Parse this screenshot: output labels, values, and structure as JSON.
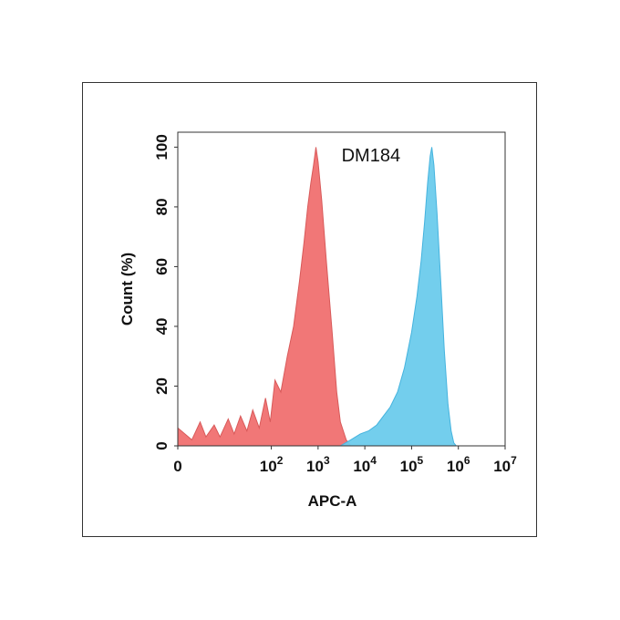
{
  "chart_data": {
    "type": "area",
    "title": "DM184",
    "xlabel": "APC-A",
    "ylabel": "Count  (%)",
    "x_scale": "log",
    "xlim": [
      1,
      10000000
    ],
    "ylim": [
      0,
      105
    ],
    "x_tick_labels": [
      {
        "value": 1,
        "base": "0",
        "exp": ""
      },
      {
        "value": 100,
        "base": "10",
        "exp": "2"
      },
      {
        "value": 1000,
        "base": "10",
        "exp": "3"
      },
      {
        "value": 10000,
        "base": "10",
        "exp": "4"
      },
      {
        "value": 100000,
        "base": "10",
        "exp": "5"
      },
      {
        "value": 1000000,
        "base": "10",
        "exp": "6"
      },
      {
        "value": 10000000,
        "base": "10",
        "exp": "7"
      }
    ],
    "y_ticks": [
      0,
      20,
      40,
      60,
      80,
      100
    ],
    "grid": false,
    "legend": "none",
    "series": [
      {
        "color": "#f07070",
        "edge": "#d85a5a",
        "points": [
          [
            1,
            6
          ],
          [
            2,
            2
          ],
          [
            3,
            8
          ],
          [
            4,
            3
          ],
          [
            6,
            7
          ],
          [
            8,
            3
          ],
          [
            12,
            9
          ],
          [
            16,
            4
          ],
          [
            22,
            10
          ],
          [
            30,
            5
          ],
          [
            40,
            12
          ],
          [
            55,
            6
          ],
          [
            75,
            16
          ],
          [
            95,
            8
          ],
          [
            120,
            22
          ],
          [
            160,
            18
          ],
          [
            220,
            30
          ],
          [
            300,
            40
          ],
          [
            400,
            55
          ],
          [
            500,
            68
          ],
          [
            600,
            80
          ],
          [
            700,
            88
          ],
          [
            800,
            94
          ],
          [
            900,
            100
          ],
          [
            1000,
            95
          ],
          [
            1200,
            82
          ],
          [
            1500,
            62
          ],
          [
            2000,
            38
          ],
          [
            2500,
            18
          ],
          [
            3000,
            8
          ],
          [
            4000,
            2
          ],
          [
            5000,
            0
          ]
        ]
      },
      {
        "color": "#6ccbec",
        "edge": "#45b3de",
        "points": [
          [
            3000,
            0
          ],
          [
            5000,
            2
          ],
          [
            8000,
            4
          ],
          [
            12000,
            5
          ],
          [
            18000,
            7
          ],
          [
            25000,
            10
          ],
          [
            35000,
            13
          ],
          [
            50000,
            18
          ],
          [
            70000,
            26
          ],
          [
            100000,
            38
          ],
          [
            130000,
            50
          ],
          [
            160000,
            62
          ],
          [
            190000,
            75
          ],
          [
            220000,
            88
          ],
          [
            250000,
            97
          ],
          [
            270000,
            100
          ],
          [
            300000,
            94
          ],
          [
            350000,
            78
          ],
          [
            420000,
            55
          ],
          [
            500000,
            32
          ],
          [
            600000,
            14
          ],
          [
            700000,
            5
          ],
          [
            800000,
            1
          ],
          [
            900000,
            0
          ]
        ]
      }
    ]
  }
}
